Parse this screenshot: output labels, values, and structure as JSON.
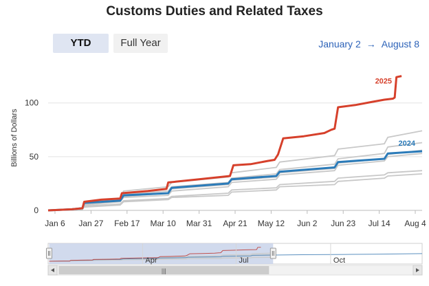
{
  "title": "Customs Duties and Related Taxes",
  "tabs": {
    "ytd": "YTD",
    "full_year": "Full Year"
  },
  "range": {
    "start": "January 2",
    "arrow": "→",
    "end": "August 8"
  },
  "navigator": {
    "labels": [
      "Apr",
      "Jul",
      "Oct"
    ],
    "handle_glyph": "|||"
  },
  "colors": {
    "series_2025": "#d6402b",
    "series_2024": "#2b7bb9",
    "prior_years": "#c8c8c8",
    "accent": "#2c62b8"
  },
  "chart_data": {
    "type": "line",
    "ylabel": "Billions of Dollars",
    "yticks": [
      0,
      50,
      100
    ],
    "ylim": [
      0,
      135
    ],
    "xlim": [
      "Jan 2",
      "Aug 8"
    ],
    "xticks": [
      "Jan 6",
      "Jan 27",
      "Feb 17",
      "Mar 10",
      "Mar 31",
      "Apr 21",
      "May 12",
      "Jun 2",
      "Jun 23",
      "Jul 14",
      "Aug 4"
    ],
    "series": [
      {
        "name": "2025",
        "highlight": true,
        "points": [
          [
            "Jan 2",
            0
          ],
          [
            "Jan 16",
            1
          ],
          [
            "Jan 22",
            2
          ],
          [
            "Jan 23",
            8
          ],
          [
            "Feb 2",
            10
          ],
          [
            "Feb 13",
            11
          ],
          [
            "Feb 14",
            16
          ],
          [
            "Mar 1",
            18
          ],
          [
            "Mar 12",
            20
          ],
          [
            "Mar 13",
            26
          ],
          [
            "Mar 31",
            29
          ],
          [
            "Apr 18",
            32
          ],
          [
            "Apr 20",
            42
          ],
          [
            "Apr 30",
            43
          ],
          [
            "May 10",
            46
          ],
          [
            "May 14",
            47
          ],
          [
            "May 16",
            52
          ],
          [
            "May 19",
            67
          ],
          [
            "May 31",
            69
          ],
          [
            "Jun 12",
            72
          ],
          [
            "Jun 16",
            75
          ],
          [
            "Jun 18",
            76
          ],
          [
            "Jun 20",
            96
          ],
          [
            "Jun 30",
            98
          ],
          [
            "Jul 10",
            101
          ],
          [
            "Jul 17",
            103
          ],
          [
            "Jul 22",
            104
          ],
          [
            "Jul 23",
            105
          ],
          [
            "Jul 24",
            124
          ],
          [
            "Jul 27",
            125
          ]
        ]
      },
      {
        "name": "2024",
        "highlight": true,
        "points": [
          [
            "Jan 2",
            0
          ],
          [
            "Jan 16",
            1
          ],
          [
            "Jan 22",
            2
          ],
          [
            "Jan 23",
            7
          ],
          [
            "Feb 13",
            9
          ],
          [
            "Feb 15",
            14
          ],
          [
            "Mar 13",
            16
          ],
          [
            "Mar 15",
            21
          ],
          [
            "Apr 17",
            25
          ],
          [
            "Apr 19",
            29
          ],
          [
            "May 15",
            32
          ],
          [
            "May 17",
            36
          ],
          [
            "Jun 18",
            40
          ],
          [
            "Jun 20",
            45
          ],
          [
            "Jul 17",
            48
          ],
          [
            "Jul 19",
            53
          ],
          [
            "Aug 8",
            55
          ]
        ]
      },
      {
        "name": "",
        "points": [
          [
            "Jan 2",
            0
          ],
          [
            "Jan 22",
            2
          ],
          [
            "Jan 23",
            8
          ],
          [
            "Feb 13",
            11
          ],
          [
            "Feb 15",
            18
          ],
          [
            "Mar 13",
            22
          ],
          [
            "Mar 15",
            26
          ],
          [
            "Apr 17",
            31
          ],
          [
            "Apr 19",
            35
          ],
          [
            "May 15",
            40
          ],
          [
            "May 17",
            45
          ],
          [
            "Jun 18",
            51
          ],
          [
            "Jun 20",
            57
          ],
          [
            "Jul 17",
            62
          ],
          [
            "Jul 19",
            68
          ],
          [
            "Aug 8",
            74
          ]
        ]
      },
      {
        "name": "",
        "points": [
          [
            "Jan 2",
            0
          ],
          [
            "Jan 22",
            2
          ],
          [
            "Jan 23",
            7
          ],
          [
            "Feb 13",
            10
          ],
          [
            "Feb 15",
            15
          ],
          [
            "Mar 13",
            18
          ],
          [
            "Mar 15",
            22
          ],
          [
            "Apr 17",
            26
          ],
          [
            "Apr 19",
            30
          ],
          [
            "May 15",
            34
          ],
          [
            "May 17",
            38
          ],
          [
            "Jun 18",
            43
          ],
          [
            "Jun 20",
            48
          ],
          [
            "Jul 17",
            53
          ],
          [
            "Jul 19",
            59
          ],
          [
            "Aug 8",
            63
          ]
        ]
      },
      {
        "name": "",
        "points": [
          [
            "Jan 2",
            0
          ],
          [
            "Jan 22",
            1
          ],
          [
            "Jan 23",
            6
          ],
          [
            "Feb 13",
            9
          ],
          [
            "Feb 15",
            13
          ],
          [
            "Mar 13",
            16
          ],
          [
            "Mar 15",
            20
          ],
          [
            "Apr 17",
            24
          ],
          [
            "Apr 19",
            28
          ],
          [
            "May 15",
            31
          ],
          [
            "May 17",
            35
          ],
          [
            "Jun 18",
            39
          ],
          [
            "Jun 20",
            44
          ],
          [
            "Jul 17",
            48
          ],
          [
            "Jul 19",
            52
          ],
          [
            "Aug 8",
            56
          ]
        ]
      },
      {
        "name": "",
        "points": [
          [
            "Jan 2",
            0
          ],
          [
            "Jan 22",
            1
          ],
          [
            "Jan 23",
            5
          ],
          [
            "Feb 13",
            8
          ],
          [
            "Feb 15",
            12
          ],
          [
            "Mar 13",
            14
          ],
          [
            "Mar 15",
            18
          ],
          [
            "Apr 17",
            22
          ],
          [
            "Apr 19",
            26
          ],
          [
            "May 15",
            29
          ],
          [
            "May 17",
            33
          ],
          [
            "Jun 18",
            37
          ],
          [
            "Jun 20",
            42
          ],
          [
            "Jul 17",
            46
          ],
          [
            "Jul 19",
            50
          ],
          [
            "Aug 8",
            53
          ]
        ]
      },
      {
        "name": "",
        "points": [
          [
            "Jan 2",
            0
          ],
          [
            "Jan 22",
            1
          ],
          [
            "Jan 23",
            4
          ],
          [
            "Feb 13",
            6
          ],
          [
            "Feb 15",
            9
          ],
          [
            "Mar 13",
            11
          ],
          [
            "Mar 15",
            13
          ],
          [
            "Apr 17",
            16
          ],
          [
            "Apr 19",
            19
          ],
          [
            "May 15",
            21
          ],
          [
            "May 17",
            24
          ],
          [
            "Jun 18",
            27
          ],
          [
            "Jun 20",
            30
          ],
          [
            "Jul 17",
            33
          ],
          [
            "Jul 19",
            35
          ],
          [
            "Aug 8",
            37
          ]
        ]
      },
      {
        "name": "",
        "points": [
          [
            "Jan 2",
            0
          ],
          [
            "Jan 22",
            1
          ],
          [
            "Jan 23",
            3
          ],
          [
            "Feb 13",
            5
          ],
          [
            "Feb 15",
            8
          ],
          [
            "Mar 13",
            10
          ],
          [
            "Mar 15",
            12
          ],
          [
            "Apr 17",
            14
          ],
          [
            "Apr 19",
            17
          ],
          [
            "May 15",
            19
          ],
          [
            "May 17",
            22
          ],
          [
            "Jun 18",
            24
          ],
          [
            "Jun 20",
            27
          ],
          [
            "Jul 17",
            30
          ],
          [
            "Jul 19",
            32
          ],
          [
            "Aug 8",
            34
          ]
        ]
      }
    ]
  }
}
